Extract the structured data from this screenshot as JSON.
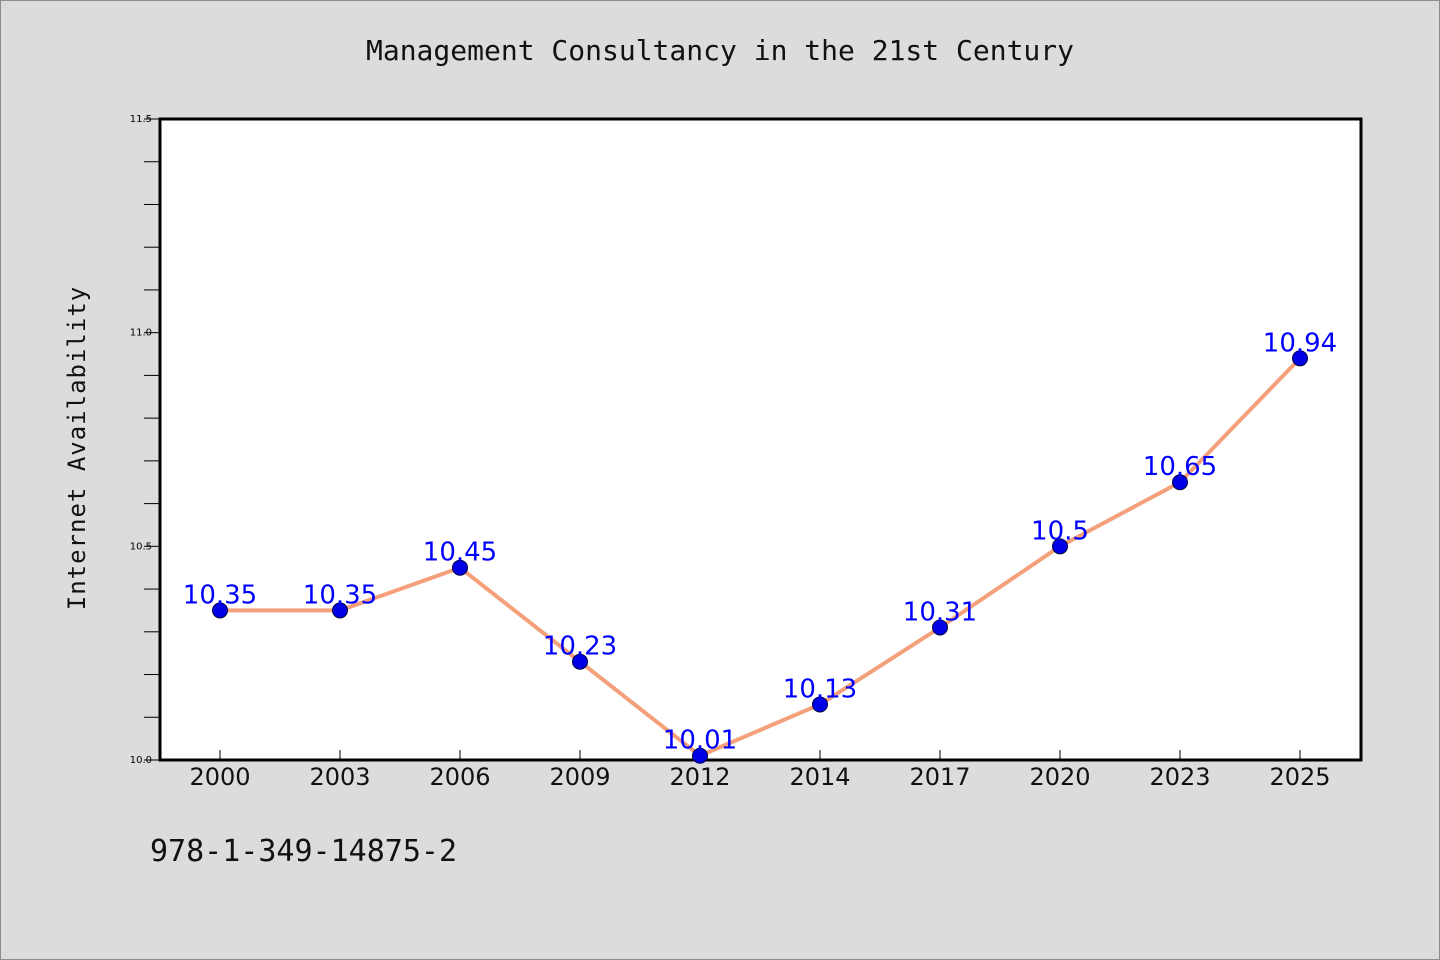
{
  "chart_data": {
    "type": "line",
    "title": "Management Consultancy in the 21st Century",
    "xlabel": "",
    "ylabel": "Internet Availability",
    "categories": [
      "2000",
      "2003",
      "2006",
      "2009",
      "2012",
      "2014",
      "2017",
      "2020",
      "2023",
      "2025"
    ],
    "values": [
      10.35,
      10.35,
      10.45,
      10.23,
      10.01,
      10.13,
      10.31,
      10.5,
      10.65,
      10.94
    ],
    "data_labels": [
      "10.35",
      "10.35",
      "10.45",
      "10.23",
      "10.01",
      "10.13",
      "10.31",
      "10.5",
      "10.65",
      "10.94"
    ],
    "ylim": [
      10.0,
      11.5
    ],
    "y_ticks": [
      "10.0",
      "10.5",
      "11.0",
      "11.5"
    ],
    "grid": false,
    "colors": {
      "line": "#f4a07a",
      "marker": "#0000e6",
      "data_label": "#0000ff",
      "background": "#dcdcdc",
      "plot_background": "#ffffff"
    }
  },
  "footer": {
    "isbn": "978-1-349-14875-2"
  }
}
